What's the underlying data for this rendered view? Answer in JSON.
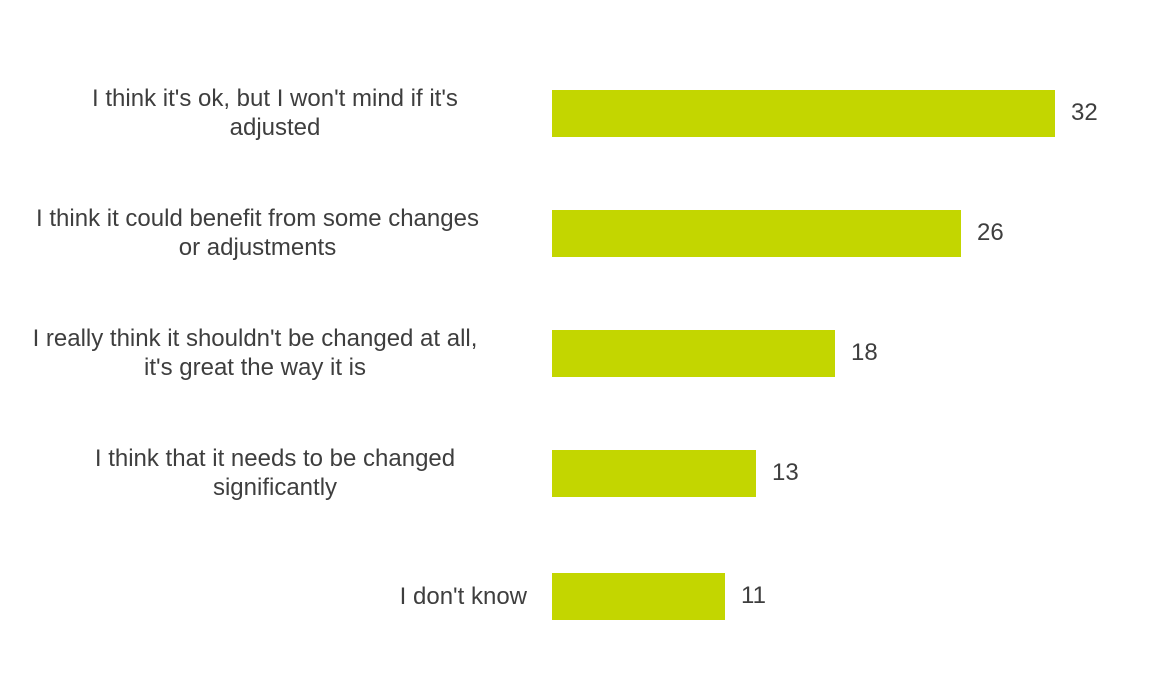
{
  "chart_data": {
    "type": "bar",
    "orientation": "horizontal",
    "title": "",
    "categories": [
      "I think it's ok, but I won't mind if it's adjusted",
      "I think it could benefit from some changes or adjustments",
      "I really think it shouldn't be changed at all, it's great the way it is",
      "I think that it needs to be changed significantly",
      "I don't know"
    ],
    "values": [
      32,
      26,
      18,
      13,
      11
    ],
    "value_labels": [
      "32",
      "26",
      "18",
      "13",
      "11"
    ],
    "bar_color": "#c3d600",
    "text_color": "#3e3e3e",
    "background_color": "#ffffff",
    "gridlines": false,
    "axes_visible": false,
    "legend": "none",
    "value_label_position": "outside-end",
    "xlim": [
      0,
      32
    ]
  }
}
